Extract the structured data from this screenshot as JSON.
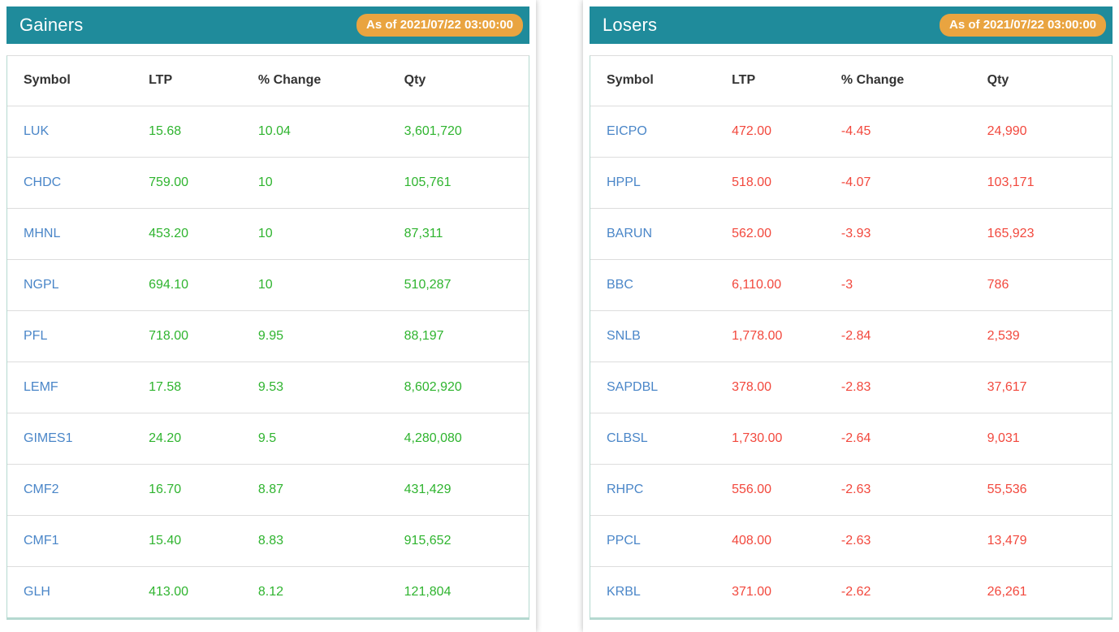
{
  "colors": {
    "header_teal": "#1f8b9b",
    "badge_orange": "#e9a440",
    "symbol_blue": "#4a86c8",
    "gain_green": "#2fb42f",
    "loss_red": "#f2483d",
    "table_border_teal": "#b5d9d0",
    "row_divider_gray": "#dddddd"
  },
  "panels": [
    {
      "title": "Gainers",
      "as_of": "As of 2021/07/22 03:00:00",
      "columns": [
        "Symbol",
        "LTP",
        "% Change",
        "Qty"
      ],
      "trend": "up",
      "rows": [
        [
          "LUK",
          "15.68",
          "10.04",
          "3,601,720"
        ],
        [
          "CHDC",
          "759.00",
          "10",
          "105,761"
        ],
        [
          "MHNL",
          "453.20",
          "10",
          "87,311"
        ],
        [
          "NGPL",
          "694.10",
          "10",
          "510,287"
        ],
        [
          "PFL",
          "718.00",
          "9.95",
          "88,197"
        ],
        [
          "LEMF",
          "17.58",
          "9.53",
          "8,602,920"
        ],
        [
          "GIMES1",
          "24.20",
          "9.5",
          "4,280,080"
        ],
        [
          "CMF2",
          "16.70",
          "8.87",
          "431,429"
        ],
        [
          "CMF1",
          "15.40",
          "8.83",
          "915,652"
        ],
        [
          "GLH",
          "413.00",
          "8.12",
          "121,804"
        ]
      ]
    },
    {
      "title": "Losers",
      "as_of": "As of 2021/07/22 03:00:00",
      "columns": [
        "Symbol",
        "LTP",
        "% Change",
        "Qty"
      ],
      "trend": "down",
      "rows": [
        [
          "EICPO",
          "472.00",
          "-4.45",
          "24,990"
        ],
        [
          "HPPL",
          "518.00",
          "-4.07",
          "103,171"
        ],
        [
          "BARUN",
          "562.00",
          "-3.93",
          "165,923"
        ],
        [
          "BBC",
          "6,110.00",
          "-3",
          "786"
        ],
        [
          "SNLB",
          "1,778.00",
          "-2.84",
          "2,539"
        ],
        [
          "SAPDBL",
          "378.00",
          "-2.83",
          "37,617"
        ],
        [
          "CLBSL",
          "1,730.00",
          "-2.64",
          "9,031"
        ],
        [
          "RHPC",
          "556.00",
          "-2.63",
          "55,536"
        ],
        [
          "PPCL",
          "408.00",
          "-2.63",
          "13,479"
        ],
        [
          "KRBL",
          "371.00",
          "-2.62",
          "26,261"
        ]
      ]
    }
  ]
}
